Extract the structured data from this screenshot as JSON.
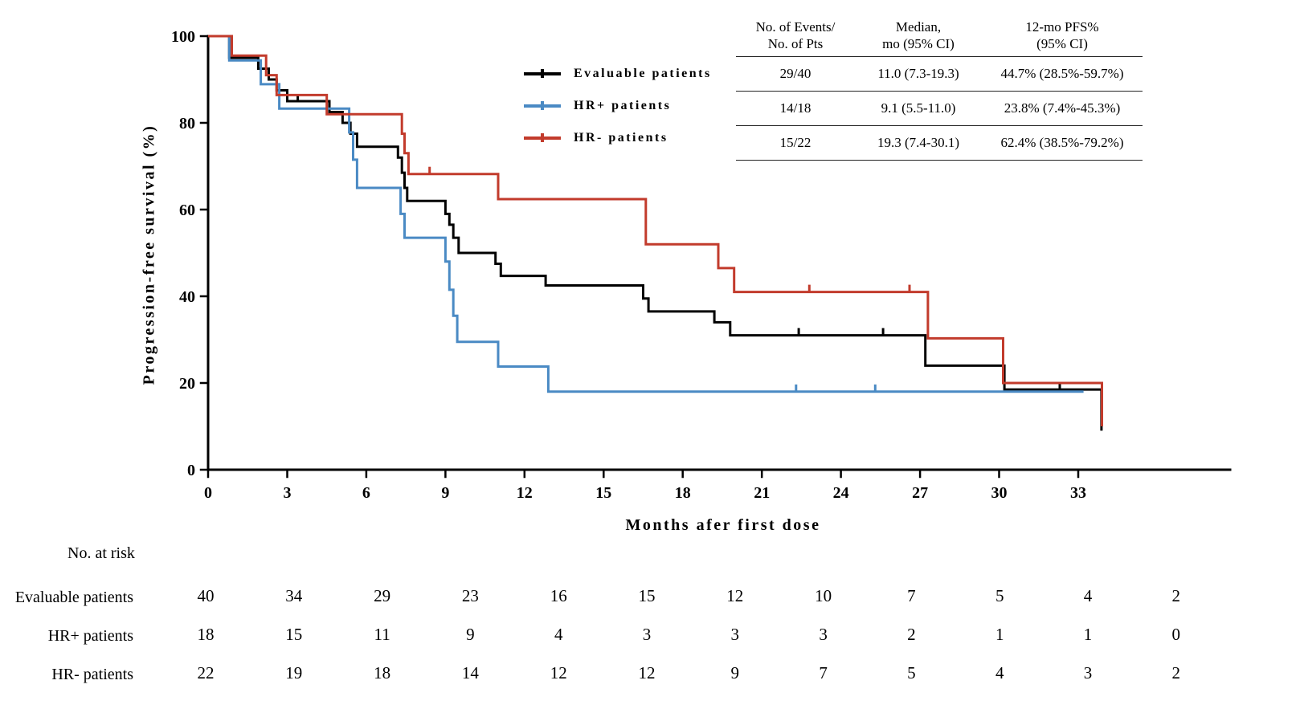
{
  "figure": {
    "y_axis_label": "Progression-free survival (%)",
    "x_axis_label": "Months afer first dose"
  },
  "legend": {
    "items": [
      {
        "label": "Evaluable patients",
        "color": "#000000"
      },
      {
        "label": "HR+ patients",
        "color": "#4A8AC4"
      },
      {
        "label": "HR- patients",
        "color": "#C23B2C"
      }
    ]
  },
  "stats_table": {
    "headers": [
      "No. of Events/\nNo. of Pts",
      "Median,\nmo (95% CI)",
      "12-mo PFS%\n(95% CI)"
    ],
    "rows": [
      {
        "events": "29/40",
        "median": "11.0 (7.3-19.3)",
        "pfs": "44.7% (28.5%-59.7%)"
      },
      {
        "events": "14/18",
        "median": "9.1 (5.5-11.0)",
        "pfs": "23.8% (7.4%-45.3%)"
      },
      {
        "events": "15/22",
        "median": "19.3 (7.4-30.1)",
        "pfs": "62.4% (38.5%-79.2%)"
      }
    ]
  },
  "risk_table": {
    "title": "No. at risk",
    "rows": [
      {
        "label": "Evaluable patients",
        "counts": [
          "40",
          "34",
          "29",
          "23",
          "16",
          "15",
          "12",
          "10",
          "7",
          "5",
          "4",
          "2"
        ]
      },
      {
        "label": "HR+ patients",
        "counts": [
          "18",
          "15",
          "11",
          "9",
          "4",
          "3",
          "3",
          "3",
          "2",
          "1",
          "1",
          "0"
        ]
      },
      {
        "label": "HR- patients",
        "counts": [
          "22",
          "19",
          "18",
          "14",
          "12",
          "12",
          "9",
          "7",
          "5",
          "4",
          "3",
          "2"
        ]
      }
    ]
  },
  "chart_data": {
    "type": "line",
    "subtype": "kaplan-meier-step",
    "title": "",
    "xlabel": "Months afer first dose",
    "ylabel": "Progression-free survival (%)",
    "xlim": [
      0,
      38.7
    ],
    "ylim": [
      0,
      100
    ],
    "x_ticks": [
      0,
      3,
      6,
      9,
      12,
      15,
      18,
      21,
      24,
      27,
      30,
      33
    ],
    "y_ticks": [
      0,
      20,
      40,
      60,
      80,
      100
    ],
    "grid": false,
    "legend_position": "top-inside",
    "series": [
      {
        "name": "Evaluable patients",
        "color": "#000000",
        "steps": [
          [
            0,
            100
          ],
          [
            0.8,
            95
          ],
          [
            1.9,
            92.5
          ],
          [
            2.3,
            90
          ],
          [
            2.6,
            87.5
          ],
          [
            3.0,
            85
          ],
          [
            4.6,
            82.5
          ],
          [
            5.1,
            80
          ],
          [
            5.4,
            77.5
          ],
          [
            5.65,
            74.5
          ],
          [
            7.2,
            72
          ],
          [
            7.35,
            68.5
          ],
          [
            7.45,
            65
          ],
          [
            7.55,
            62
          ],
          [
            9.0,
            59
          ],
          [
            9.15,
            56.5
          ],
          [
            9.3,
            53.5
          ],
          [
            9.5,
            50
          ],
          [
            10.9,
            47.5
          ],
          [
            11.1,
            44.7
          ],
          [
            12.8,
            42.5
          ],
          [
            16.5,
            39.5
          ],
          [
            16.7,
            36.5
          ],
          [
            19.2,
            34
          ],
          [
            19.8,
            31
          ],
          [
            27.2,
            24
          ],
          [
            30.2,
            18.5
          ],
          [
            33.88,
            9
          ]
        ],
        "censors": [
          [
            3.4,
            85
          ],
          [
            22.4,
            31
          ],
          [
            25.6,
            31
          ],
          [
            32.3,
            18.5
          ]
        ]
      },
      {
        "name": "HR+ patients",
        "color": "#4A8AC4",
        "steps": [
          [
            0,
            100
          ],
          [
            0.8,
            94.4
          ],
          [
            2.0,
            88.9
          ],
          [
            2.7,
            83.3
          ],
          [
            5.35,
            77.8
          ],
          [
            5.5,
            71.5
          ],
          [
            5.65,
            65
          ],
          [
            7.3,
            59
          ],
          [
            7.45,
            53.5
          ],
          [
            9.0,
            48
          ],
          [
            9.15,
            41.5
          ],
          [
            9.3,
            35.5
          ],
          [
            9.45,
            29.5
          ],
          [
            11.0,
            23.8
          ],
          [
            12.9,
            18
          ],
          [
            33.2,
            18
          ]
        ],
        "censors": [
          [
            22.3,
            18
          ],
          [
            25.3,
            18
          ]
        ]
      },
      {
        "name": "HR- patients",
        "color": "#C23B2C",
        "steps": [
          [
            0,
            100
          ],
          [
            0.9,
            95.5
          ],
          [
            2.2,
            91
          ],
          [
            2.6,
            86.4
          ],
          [
            4.5,
            82
          ],
          [
            7.35,
            77.5
          ],
          [
            7.45,
            73
          ],
          [
            7.6,
            68.2
          ],
          [
            11.0,
            62.4
          ],
          [
            16.6,
            52
          ],
          [
            19.35,
            46.5
          ],
          [
            19.95,
            41
          ],
          [
            27.3,
            30.3
          ],
          [
            30.15,
            20
          ],
          [
            33.9,
            10
          ]
        ],
        "censors": [
          [
            8.4,
            68.2
          ],
          [
            22.8,
            41
          ],
          [
            26.6,
            41
          ]
        ]
      }
    ]
  }
}
